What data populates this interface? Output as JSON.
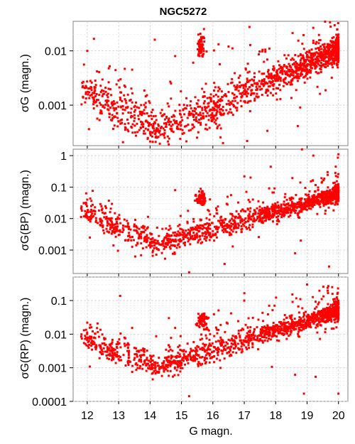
{
  "chart_data": {
    "title": "NGC5272",
    "xlabel": "G magn.",
    "colors": {
      "points": "#ff0000",
      "grid": "#d0d0d0",
      "frame": "#808080"
    },
    "panels": [
      {
        "type": "scatter",
        "ylabel": "σG (magn.)",
        "yscale": "log",
        "xlim": [
          11.55,
          20.3
        ],
        "ylim": [
          0.00018,
          0.035
        ],
        "yticks": [
          {
            "v": 0.01,
            "label": "0.01"
          },
          {
            "v": 0.001,
            "label": "0.001"
          }
        ],
        "grid": true,
        "points": [
          [
            12.0,
            0.01
          ],
          [
            12.1,
            0.0028
          ],
          [
            12.2,
            0.0013
          ],
          [
            12.3,
            0.0016
          ],
          [
            12.4,
            0.0011
          ],
          [
            12.55,
            0.0009
          ],
          [
            12.7,
            0.0007
          ],
          [
            12.85,
            0.0006
          ],
          [
            13.0,
            0.0005
          ],
          [
            13.2,
            0.00045
          ],
          [
            13.4,
            0.0004
          ],
          [
            13.6,
            0.00032
          ],
          [
            13.8,
            0.0003
          ],
          [
            14.0,
            0.0003
          ],
          [
            14.2,
            0.00033
          ],
          [
            14.5,
            0.0004
          ],
          [
            14.8,
            0.0005
          ],
          [
            15.0,
            0.0006
          ],
          [
            15.3,
            0.0007
          ],
          [
            15.55,
            0.015
          ],
          [
            15.6,
            0.012
          ],
          [
            15.65,
            0.018
          ],
          [
            15.7,
            0.011
          ],
          [
            16.0,
            0.0009
          ],
          [
            16.5,
            0.0012
          ],
          [
            17.0,
            0.0016
          ],
          [
            17.5,
            0.0022
          ],
          [
            18.0,
            0.0028
          ],
          [
            18.5,
            0.0036
          ],
          [
            19.0,
            0.0045
          ],
          [
            19.5,
            0.0055
          ],
          [
            20.0,
            0.0065
          ],
          [
            14.8,
            0.008
          ],
          [
            16.5,
            0.012
          ],
          [
            17.8,
            0.011
          ],
          [
            19.2,
            0.014
          ],
          [
            20.0,
            0.02
          ]
        ]
      },
      {
        "type": "scatter",
        "ylabel": "σG(BP) (magn.)",
        "yscale": "log",
        "xlim": [
          11.55,
          20.3
        ],
        "ylim": [
          0.00018,
          1.6
        ],
        "yticks": [
          {
            "v": 1,
            "label": "1"
          },
          {
            "v": 0.1,
            "label": "0.1"
          },
          {
            "v": 0.01,
            "label": "0.01"
          },
          {
            "v": 0.001,
            "label": "0.001"
          }
        ],
        "grid": true,
        "points": [
          [
            12.0,
            0.04
          ],
          [
            12.2,
            0.012
          ],
          [
            12.5,
            0.006
          ],
          [
            12.8,
            0.004
          ],
          [
            13.0,
            0.003
          ],
          [
            13.3,
            0.002
          ],
          [
            13.6,
            0.0017
          ],
          [
            14.0,
            0.0015
          ],
          [
            14.3,
            0.0015
          ],
          [
            14.6,
            0.0017
          ],
          [
            15.0,
            0.002
          ],
          [
            15.3,
            0.0025
          ],
          [
            15.55,
            0.04
          ],
          [
            15.6,
            0.05
          ],
          [
            15.65,
            0.035
          ],
          [
            16.0,
            0.004
          ],
          [
            16.5,
            0.006
          ],
          [
            17.0,
            0.009
          ],
          [
            17.5,
            0.013
          ],
          [
            18.0,
            0.018
          ],
          [
            18.5,
            0.025
          ],
          [
            19.0,
            0.035
          ],
          [
            19.5,
            0.05
          ],
          [
            20.0,
            0.07
          ],
          [
            19.2,
            1.0
          ],
          [
            20.0,
            1.1
          ],
          [
            19.7,
            0.0003
          ],
          [
            14.8,
            0.08
          ],
          [
            17.2,
            0.2
          ],
          [
            18.8,
            0.002
          ]
        ]
      },
      {
        "type": "scatter",
        "ylabel": "σG(RP) (magn.)",
        "yscale": "log",
        "xlim": [
          11.55,
          20.3
        ],
        "ylim": [
          0.0001,
          0.5
        ],
        "yticks": [
          {
            "v": 0.1,
            "label": "0.1"
          },
          {
            "v": 0.01,
            "label": "0.01"
          },
          {
            "v": 0.001,
            "label": "0.001"
          },
          {
            "v": 0.0001,
            "label": "0.0001"
          }
        ],
        "grid": true,
        "points": [
          [
            12.0,
            0.022
          ],
          [
            12.2,
            0.006
          ],
          [
            12.5,
            0.003
          ],
          [
            12.8,
            0.0022
          ],
          [
            13.0,
            0.0018
          ],
          [
            13.3,
            0.0014
          ],
          [
            13.6,
            0.0012
          ],
          [
            14.0,
            0.001
          ],
          [
            14.3,
            0.001
          ],
          [
            14.6,
            0.0012
          ],
          [
            15.0,
            0.0014
          ],
          [
            15.3,
            0.0018
          ],
          [
            15.55,
            0.025
          ],
          [
            15.6,
            0.03
          ],
          [
            15.65,
            0.02
          ],
          [
            16.0,
            0.003
          ],
          [
            16.5,
            0.004
          ],
          [
            17.0,
            0.006
          ],
          [
            17.5,
            0.009
          ],
          [
            18.0,
            0.013
          ],
          [
            18.5,
            0.018
          ],
          [
            19.0,
            0.025
          ],
          [
            19.5,
            0.035
          ],
          [
            20.0,
            0.05
          ],
          [
            18.9,
            0.00017
          ],
          [
            20.0,
            0.00017
          ],
          [
            19.0,
            0.3
          ],
          [
            19.8,
            0.25
          ],
          [
            14.6,
            0.03
          ],
          [
            17.0,
            0.1
          ]
        ]
      }
    ],
    "xticks": [
      12,
      13,
      14,
      15,
      16,
      17,
      18,
      19,
      20
    ]
  }
}
